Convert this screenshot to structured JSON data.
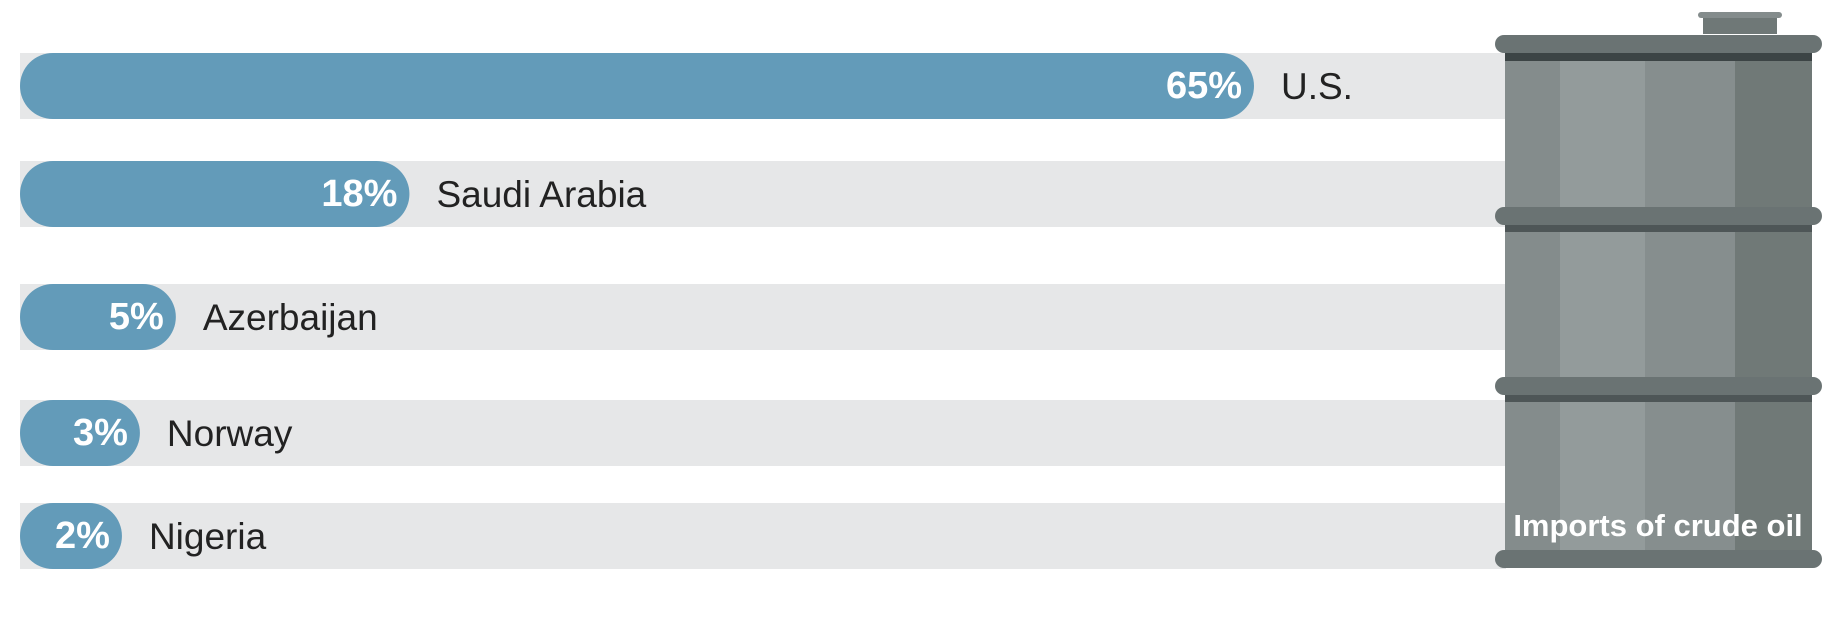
{
  "chart_data": {
    "type": "bar",
    "title": "Imports of crude oil",
    "categories": [
      "U.S.",
      "Saudi Arabia",
      "Azerbaijan",
      "Norway",
      "Nigeria"
    ],
    "values": [
      65,
      18,
      5,
      3,
      2
    ],
    "value_labels": [
      "65%",
      "18%",
      "5%",
      "3%",
      "2%"
    ],
    "color": "#639bb9"
  }
}
